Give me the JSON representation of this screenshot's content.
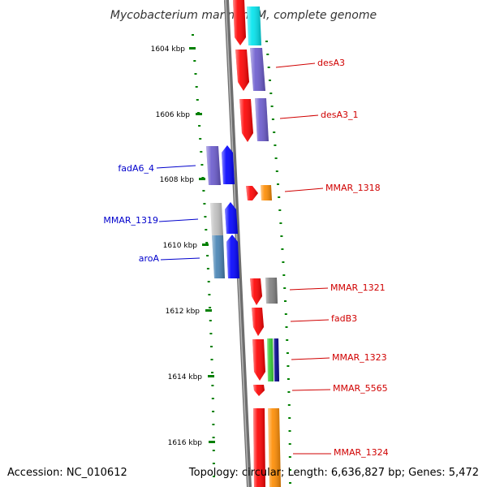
{
  "title": "Mycobacterium marinum M, complete genome",
  "footer": {
    "accession": "Accession: NC_010612",
    "topology": "Topology: circular; Length: 6,636,827 bp; Genes: 5,472"
  },
  "ticks": [
    "1604 kbp",
    "1606 kbp",
    "1608 kbp",
    "1610 kbp",
    "1612 kbp",
    "1614 kbp",
    "1616 kbp"
  ],
  "labels_right": [
    "desA3",
    "desA3_1",
    "MMAR_1318",
    "MMAR_1321",
    "fadB3",
    "MMAR_1323",
    "MMAR_5565",
    "MMAR_1324"
  ],
  "labels_left": [
    "fadA6_4",
    "MMAR_1319",
    "aroA"
  ],
  "colors": {
    "red": "#ff0000",
    "blue": "#0000ff",
    "purple": "#6a5acd",
    "cyan": "#00e5ee",
    "orange": "#ff8c00",
    "gray": "#808080",
    "green": "#32cd32",
    "navy": "#00008b",
    "steelblue": "#4682b4",
    "lightgray": "#c0c0c0",
    "tick_green": "#008000"
  }
}
